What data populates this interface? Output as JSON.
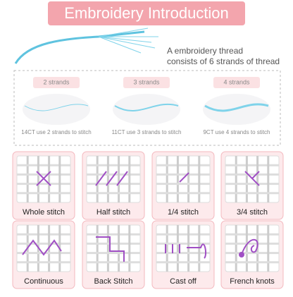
{
  "header": {
    "title": "Embroidery Introduction"
  },
  "thread": {
    "lines": [
      "A embroidery thread",
      "consists of 6 strands of thread"
    ]
  },
  "strands": [
    {
      "label": "2 strands",
      "caption": "14CT use 2 strands to stitch"
    },
    {
      "label": "3 strands",
      "caption": "11CT use 3 strands to stitch"
    },
    {
      "label": "4 strands",
      "caption": "9CT use 4 strands to stitch"
    }
  ],
  "stitches": [
    "Whole stitch",
    "Half stitch",
    "1/4 stitch",
    "3/4 stitch",
    "Continuous",
    "Back Stitch",
    "Cast off",
    "French knots"
  ]
}
